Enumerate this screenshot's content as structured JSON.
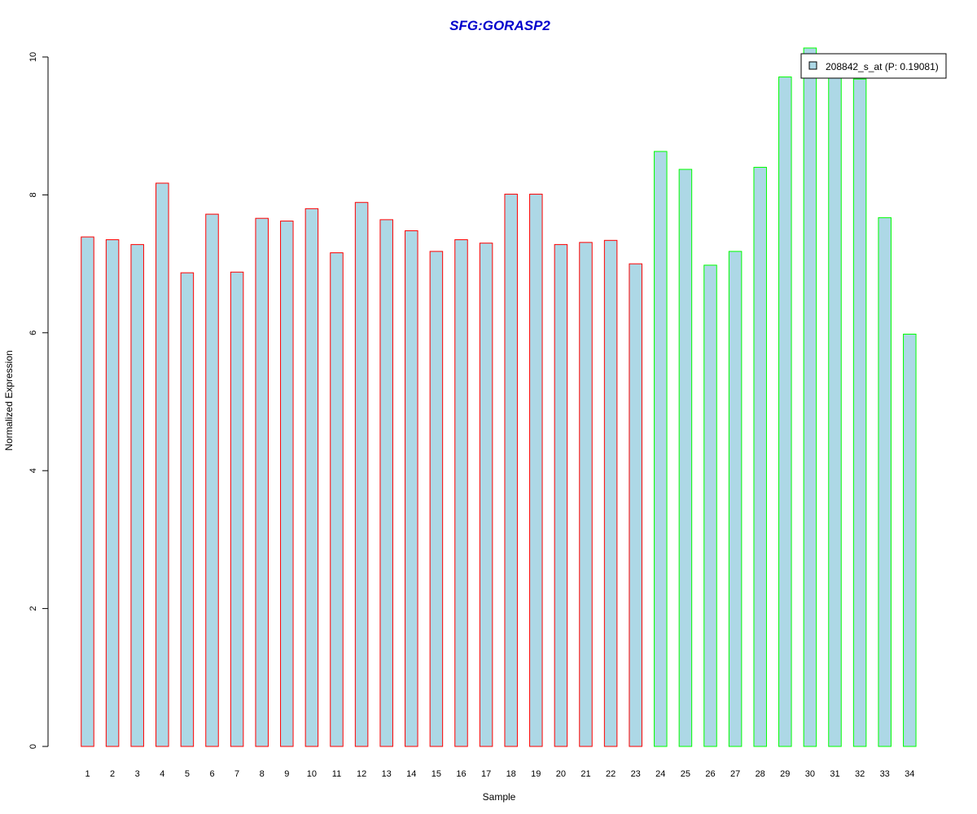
{
  "chart_data": {
    "type": "bar",
    "title": "SFG:GORASP2",
    "xlabel": "Sample",
    "ylabel": "Normalized Expression",
    "ylim": [
      0,
      10
    ],
    "y_ticks": [
      0,
      2,
      4,
      6,
      8,
      10
    ],
    "grid": false,
    "legend_position": "top-right",
    "legend_label": "208842_s_at (P: 0.19081)",
    "categories": [
      "1",
      "2",
      "3",
      "4",
      "5",
      "6",
      "7",
      "8",
      "9",
      "10",
      "11",
      "12",
      "13",
      "14",
      "15",
      "16",
      "17",
      "18",
      "19",
      "20",
      "21",
      "22",
      "23",
      "24",
      "25",
      "26",
      "27",
      "28",
      "29",
      "30",
      "31",
      "32",
      "33",
      "34"
    ],
    "values": [
      7.39,
      7.35,
      7.28,
      8.17,
      6.87,
      7.72,
      6.88,
      7.66,
      7.62,
      7.8,
      7.16,
      7.89,
      7.64,
      7.48,
      7.18,
      7.35,
      7.3,
      8.01,
      8.01,
      7.28,
      7.31,
      7.34,
      7.0,
      8.63,
      8.37,
      6.98,
      7.18,
      8.4,
      9.71,
      10.13,
      9.7,
      9.68,
      7.67,
      5.98
    ],
    "groups": [
      "red",
      "red",
      "red",
      "red",
      "red",
      "red",
      "red",
      "red",
      "red",
      "red",
      "red",
      "red",
      "red",
      "red",
      "red",
      "red",
      "red",
      "red",
      "red",
      "red",
      "red",
      "red",
      "red",
      "green",
      "green",
      "green",
      "green",
      "green",
      "green",
      "green",
      "green",
      "green",
      "green",
      "green"
    ],
    "colors": {
      "bar_fill": "#add8e6",
      "group_red": "#ff0000",
      "group_green": "#00ff00",
      "title": "#0000cc",
      "axis": "#000000"
    }
  }
}
